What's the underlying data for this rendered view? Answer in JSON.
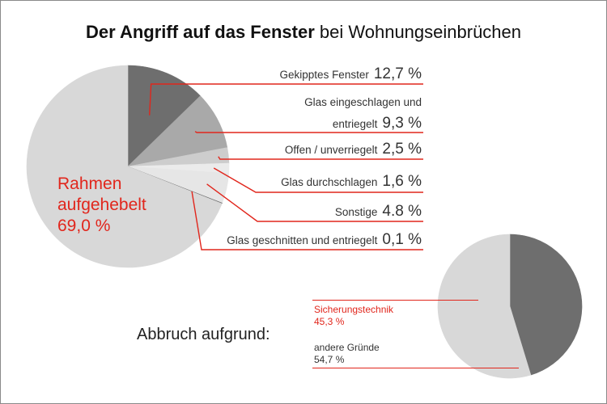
{
  "title": {
    "bold": "Der Angriff auf das Fenster",
    "rest": " bei Wohnungseinbrüchen"
  },
  "colors": {
    "accent_red": "#e1261c",
    "dark_gray": "#6e6e6e",
    "mid_gray": "#a9a9a9",
    "light_gray": "#d8d8d8",
    "pale_gray": "#e9e9e9",
    "label_text": "#333333"
  },
  "chart_data": [
    {
      "type": "pie",
      "title": "Der Angriff auf das Fenster bei Wohnungseinbrüchen",
      "slices": [
        {
          "label": "Gekipptes Fenster",
          "value": 12.7,
          "display": "12,7 %",
          "label_lines": [
            "Gekipptes Fenster"
          ],
          "color": "#6e6e6e"
        },
        {
          "label": "Glas eingeschlagen und entriegelt",
          "value": 9.3,
          "display": "9,3 %",
          "label_lines": [
            "Glas eingeschlagen und",
            "entriegelt"
          ],
          "color": "#a9a9a9"
        },
        {
          "label": "Offen / unverriegelt",
          "value": 2.5,
          "display": "2,5 %",
          "label_lines": [
            "Offen / unverriegelt"
          ],
          "color": "#cdcdcd"
        },
        {
          "label": "Glas durchschlagen",
          "value": 1.6,
          "display": "1,6 %",
          "label_lines": [
            "Glas durchschlagen"
          ],
          "color": "#ebebeb"
        },
        {
          "label": "Sonstige",
          "value": 4.8,
          "display": "4.8 %",
          "label_lines": [
            "Sonstige"
          ],
          "color": "#e6e6e6"
        },
        {
          "label": "Glas geschnitten und entriegelt",
          "value": 0.1,
          "display": "0,1 %",
          "label_lines": [
            "Glas geschnitten und entriegelt"
          ],
          "color": "#6e6e6e"
        },
        {
          "label": "Rahmen aufgehebelt",
          "value": 69.0,
          "display": "69,0 %",
          "label_lines": [
            "Rahmen",
            "aufgehebelt"
          ],
          "color": "#d8d8d8"
        }
      ]
    },
    {
      "type": "pie",
      "title": "Abbruch aufgrund:",
      "slices": [
        {
          "label": "Sicherungstechnik",
          "value": 45.3,
          "display": "45,3 %",
          "color": "#6e6e6e"
        },
        {
          "label": "andere Gründe",
          "value": 54.7,
          "display": "54,7 %",
          "color": "#d8d8d8"
        }
      ]
    }
  ]
}
